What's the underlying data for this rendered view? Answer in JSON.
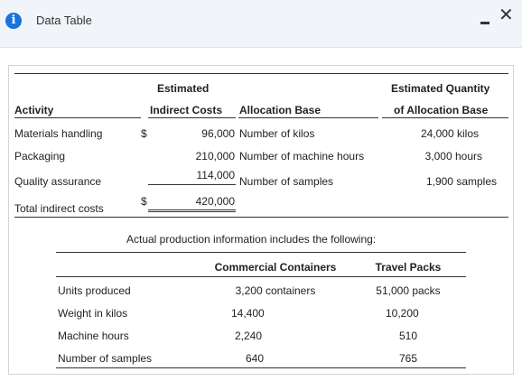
{
  "window": {
    "title": "Data Table"
  },
  "table1": {
    "header_top": {
      "estimated": "Estimated",
      "estimated_quantity": "Estimated Quantity"
    },
    "header_bottom": {
      "activity": "Activity",
      "indirect_costs": "Indirect Costs",
      "allocation_base": "Allocation Base",
      "of_allocation_base": "of Allocation Base"
    },
    "rows": [
      {
        "activity": "Materials handling",
        "dollar": "$",
        "cost": "96,000",
        "base": "Number of kilos",
        "qty": "24,000 kilos"
      },
      {
        "activity": "Packaging",
        "dollar": "",
        "cost": "210,000",
        "base": "Number of machine hours",
        "qty": "3,000 hours"
      },
      {
        "activity": "Quality assurance",
        "dollar": "",
        "cost": "114,000",
        "base": "Number of samples",
        "qty": "1,900 samples"
      }
    ],
    "total": {
      "label": "Total indirect costs",
      "dollar": "$",
      "value": "420,000"
    }
  },
  "table2": {
    "caption": "Actual production information includes the following:",
    "columns": [
      "Commercial Containers",
      "Travel Packs"
    ],
    "rows": [
      {
        "label": "Units produced",
        "commercial": "3,200 containers",
        "travel": "51,000 packs"
      },
      {
        "label": "Weight in kilos",
        "commercial": "14,400",
        "travel": "10,200"
      },
      {
        "label": "Machine hours",
        "commercial": "2,240",
        "travel": "510"
      },
      {
        "label": "Number of samples",
        "commercial": "640",
        "travel": "765"
      }
    ]
  },
  "colors": {
    "titlebar_bg": "#f1f5fa",
    "info_icon": "#1a73d9"
  },
  "icons": {
    "info": "info-icon",
    "minimize": "minimize-icon",
    "close": "close-icon"
  }
}
